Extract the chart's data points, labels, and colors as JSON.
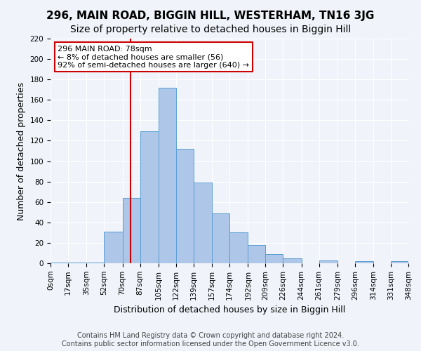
{
  "title": "296, MAIN ROAD, BIGGIN HILL, WESTERHAM, TN16 3JG",
  "subtitle": "Size of property relative to detached houses in Biggin Hill",
  "xlabel": "Distribution of detached houses by size in Biggin Hill",
  "ylabel": "Number of detached properties",
  "bin_edges": [
    0,
    17,
    35,
    52,
    70,
    87,
    105,
    122,
    139,
    157,
    174,
    192,
    209,
    226,
    244,
    261,
    279,
    296,
    314,
    331,
    348
  ],
  "bar_heights": [
    1,
    1,
    1,
    31,
    64,
    129,
    172,
    112,
    79,
    49,
    30,
    18,
    9,
    5,
    0,
    3,
    0,
    2,
    0,
    2
  ],
  "bar_color": "#aec6e8",
  "bar_edge_color": "#5a9fd4",
  "vline_x": 78,
  "vline_color": "#cc0000",
  "annotation_text": "296 MAIN ROAD: 78sqm\n← 8% of detached houses are smaller (56)\n92% of semi-detached houses are larger (640) →",
  "annotation_box_color": "#ffffff",
  "annotation_box_edge": "#cc0000",
  "ylim": [
    0,
    220
  ],
  "yticks": [
    0,
    20,
    40,
    60,
    80,
    100,
    120,
    140,
    160,
    180,
    200,
    220
  ],
  "tick_labels": [
    "0sqm",
    "17sqm",
    "35sqm",
    "52sqm",
    "70sqm",
    "87sqm",
    "105sqm",
    "122sqm",
    "139sqm",
    "157sqm",
    "174sqm",
    "192sqm",
    "209sqm",
    "226sqm",
    "244sqm",
    "261sqm",
    "279sqm",
    "296sqm",
    "314sqm",
    "331sqm",
    "348sqm"
  ],
  "footer": "Contains HM Land Registry data © Crown copyright and database right 2024.\nContains public sector information licensed under the Open Government Licence v3.0.",
  "bg_color": "#f0f4fa",
  "grid_color": "#ffffff",
  "title_fontsize": 11,
  "subtitle_fontsize": 10,
  "xlabel_fontsize": 9,
  "ylabel_fontsize": 9,
  "tick_fontsize": 7.5,
  "footer_fontsize": 7
}
